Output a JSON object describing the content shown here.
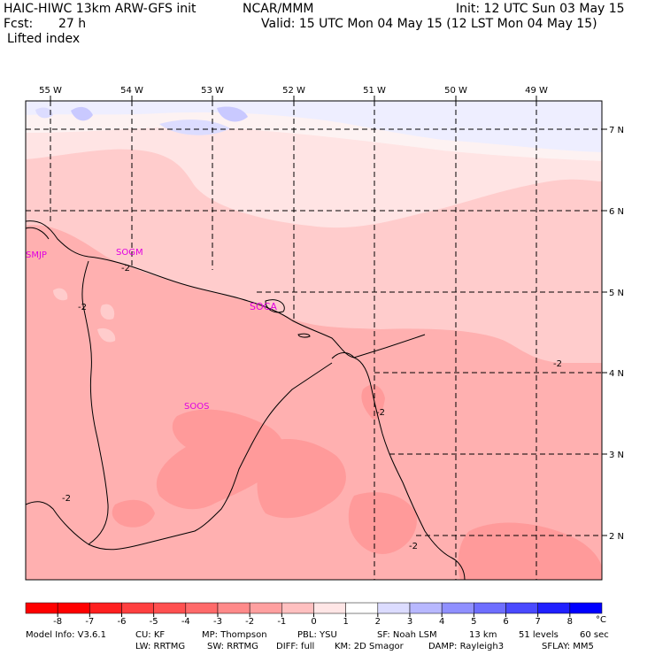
{
  "header": {
    "model": "HAIC-HIWC 13km ARW-GFS init",
    "org": "NCAR/MMM",
    "init": "Init: 12 UTC Sun 03 May 15",
    "fcst_label": "Fcst:",
    "fcst_value": "27 h",
    "valid": "Valid: 15 UTC Mon 04 May 15 (12 LST Mon 04 May 15)",
    "field": "Lifted index"
  },
  "map": {
    "longitudes": [
      "55 W",
      "54 W",
      "53 W",
      "52 W",
      "51 W",
      "50 W",
      "49 W"
    ],
    "latitudes": [
      "7 N",
      "6 N",
      "5 N",
      "4 N",
      "3 N",
      "2 N"
    ],
    "stations": [
      "SMJP",
      "SOGM",
      "SOCA",
      "SOOS"
    ],
    "contour_labels": [
      "-2",
      "-2",
      "-2",
      "-2",
      "-2",
      "-2"
    ]
  },
  "colorbar": {
    "ticks": [
      "-8",
      "-7",
      "-6",
      "-5",
      "-4",
      "-3",
      "-2",
      "-1",
      "0",
      "1",
      "2",
      "3",
      "4",
      "5",
      "6",
      "7",
      "8"
    ],
    "unit": "°C",
    "colors": [
      "#ff0000",
      "#ff2020",
      "#ff4040",
      "#ff5050",
      "#ff6a6a",
      "#ff8a8a",
      "#ffa0a0",
      "#ffc0c0",
      "#ffe6e6",
      "#ffffff",
      "#dcdcff",
      "#b8b8ff",
      "#9090ff",
      "#6e6eff",
      "#4a4aff",
      "#2020ff",
      "#0000ff"
    ]
  },
  "footer": {
    "line1": [
      "Model Info: V3.6.1",
      "CU: KF",
      "MP: Thompson",
      "PBL: YSU",
      "SF: Noah LSM",
      "13 km",
      "51 levels",
      "60 sec"
    ],
    "line2": [
      "LW: RRTMG",
      "SW: RRTMG",
      "DIFF: full",
      "KM: 2D Smagor",
      "DAMP: Rayleigh3",
      "SFLAY: MM5"
    ]
  }
}
